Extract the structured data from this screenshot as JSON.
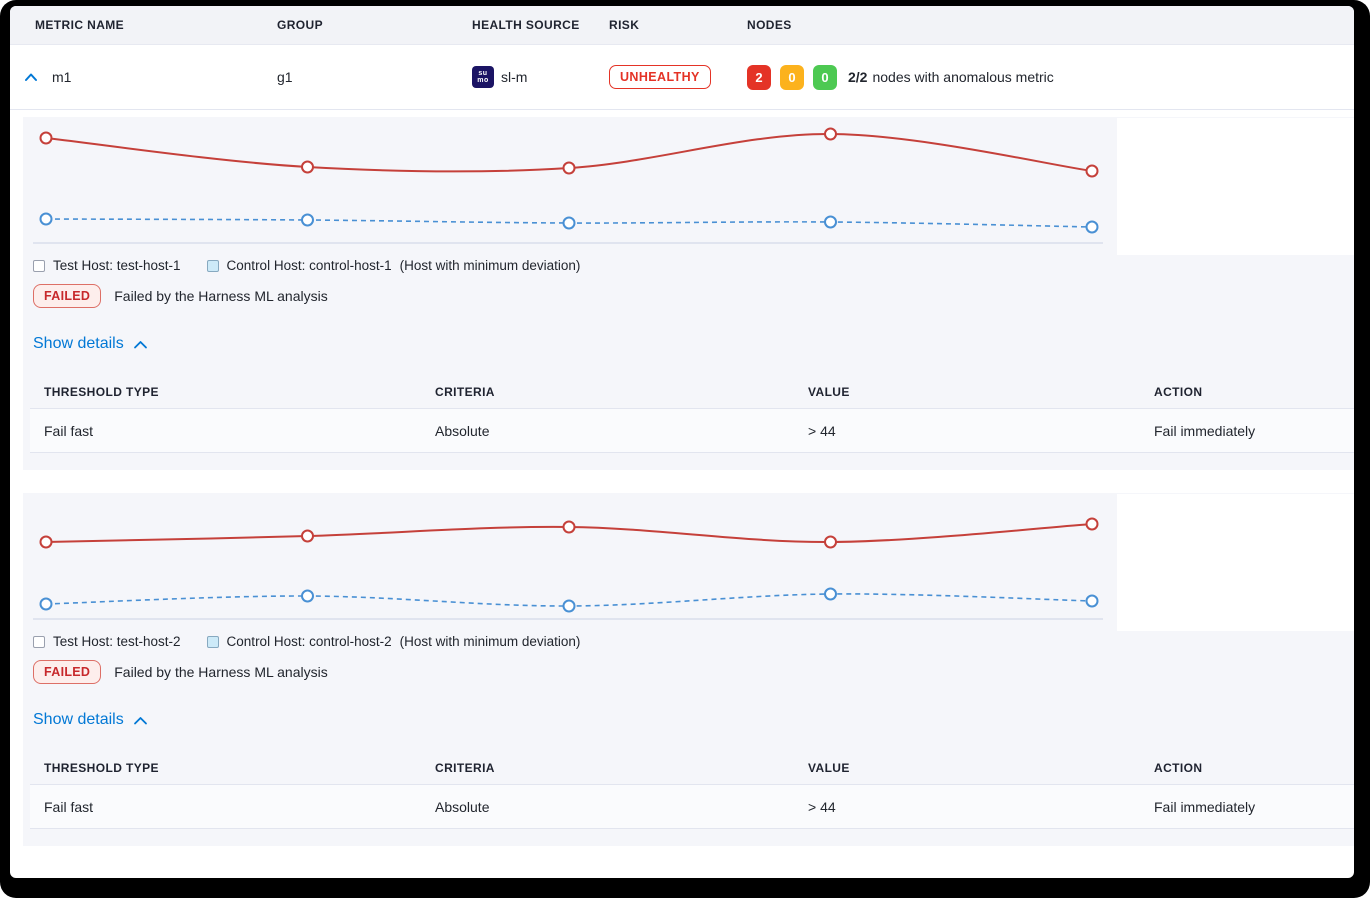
{
  "columns": {
    "metric_name": "METRIC NAME",
    "group": "GROUP",
    "health_source": "HEALTH SOURCE",
    "risk": "RISK",
    "nodes": "NODES"
  },
  "metric_row": {
    "metric_name": "m1",
    "group": "g1",
    "health_source": {
      "label": "sl-m",
      "icon": "sumologic-icon",
      "icon_text_top": "su",
      "icon_text_bottom": "mo"
    },
    "risk": "UNHEALTHY",
    "nodes": {
      "counts": [
        {
          "value": "2",
          "color": "#e43326"
        },
        {
          "value": "0",
          "color": "#fcb21d"
        },
        {
          "value": "0",
          "color": "#4dc952"
        }
      ],
      "summary_bold": "2/2",
      "summary_text": "nodes with anomalous metric"
    }
  },
  "sections": [
    {
      "legend": {
        "test_label": "Test Host: test-host-1",
        "control_label": "Control Host: control-host-1",
        "note": "(Host with minimum deviation)"
      },
      "verdict": {
        "badge": "FAILED",
        "message": "Failed by the Harness ML analysis"
      },
      "show_details": "Show details",
      "details_table": {
        "headers": {
          "threshold_type": "THRESHOLD TYPE",
          "criteria": "CRITERIA",
          "value": "VALUE",
          "action": "ACTION"
        },
        "row": {
          "threshold_type": "Fail fast",
          "criteria": "Absolute",
          "value": "> 44",
          "action": "Fail immediately"
        }
      }
    },
    {
      "legend": {
        "test_label": "Test Host: test-host-2",
        "control_label": "Control Host: control-host-2",
        "note": "(Host with minimum deviation)"
      },
      "verdict": {
        "badge": "FAILED",
        "message": "Failed by the Harness ML analysis"
      },
      "show_details": "Show details",
      "details_table": {
        "headers": {
          "threshold_type": "THRESHOLD TYPE",
          "criteria": "CRITERIA",
          "value": "VALUE",
          "action": "ACTION"
        },
        "row": {
          "threshold_type": "Fail fast",
          "criteria": "Absolute",
          "value": "> 44",
          "action": "Fail immediately"
        }
      }
    }
  ],
  "chart_data": [
    {
      "type": "line",
      "title": "",
      "x": [
        1,
        2,
        3,
        4,
        5
      ],
      "units": "relative (no axis tick labels shown in chart)",
      "ylim": [
        0,
        130
      ],
      "grid": false,
      "legend_position": "below",
      "series": [
        {
          "name": "Test Host: test-host-1",
          "color": "#c5403a",
          "style": "solid",
          "marker": "open-circle",
          "values": [
            105,
            76,
            75,
            109,
            72
          ]
        },
        {
          "name": "Control Host: control-host-1",
          "color": "#4990d4",
          "style": "dashed",
          "marker": "open-circle",
          "values": [
            24,
            23,
            20,
            21,
            16
          ]
        }
      ]
    },
    {
      "type": "line",
      "title": "",
      "x": [
        1,
        2,
        3,
        4,
        5
      ],
      "units": "relative (no axis tick labels shown in chart)",
      "ylim": [
        0,
        130
      ],
      "grid": false,
      "legend_position": "below",
      "series": [
        {
          "name": "Test Host: test-host-2",
          "color": "#c5403a",
          "style": "solid",
          "marker": "open-circle",
          "values": [
            77,
            83,
            92,
            77,
            95
          ]
        },
        {
          "name": "Control Host: control-host-2",
          "color": "#4990d4",
          "style": "dashed",
          "marker": "open-circle",
          "values": [
            15,
            23,
            13,
            25,
            18
          ]
        }
      ]
    }
  ],
  "colors": {
    "risk_red": "#e43326",
    "failed_text": "#c7292c",
    "link_blue": "#0278d5",
    "section_bg": "#f5f6fa",
    "test_series": "#c5403a",
    "control_series": "#4990d4"
  }
}
